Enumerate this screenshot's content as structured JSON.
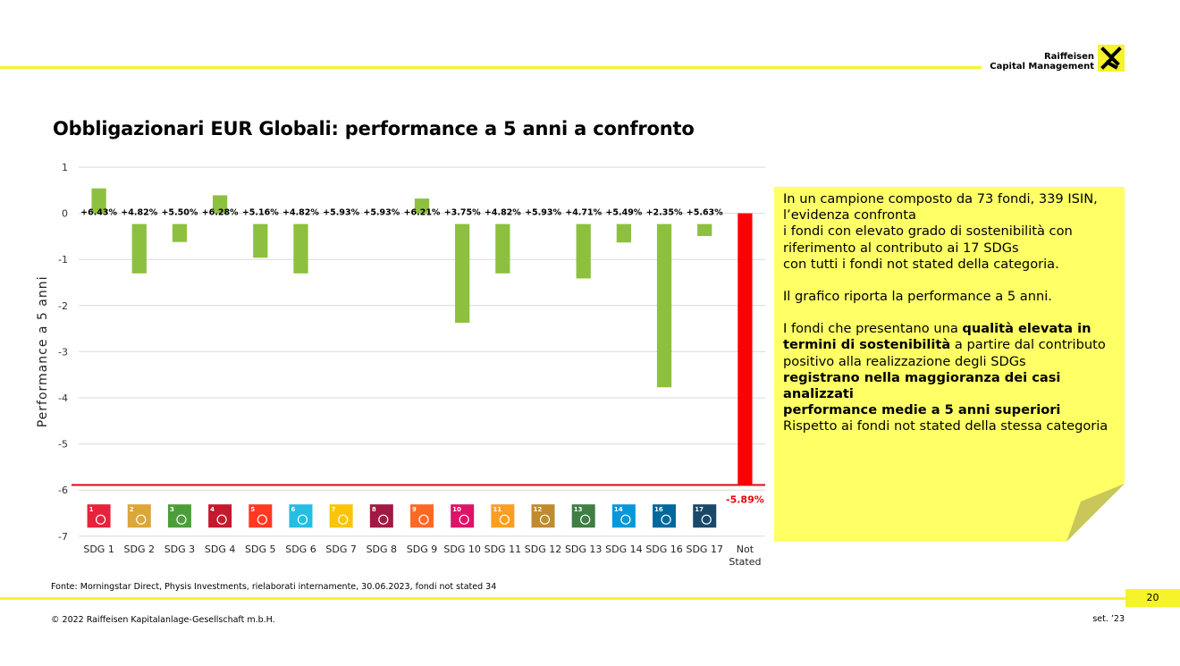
{
  "header": {
    "brand_line1": "Raiffeisen",
    "brand_line2": "Capital Management"
  },
  "title": "Obbligazionari EUR Globali: performance a 5 anni a confronto",
  "chart_data": {
    "type": "bar",
    "ylabel": "Performance a 5 anni",
    "ylim": [
      -7,
      1
    ],
    "yticks": [
      1,
      0,
      -1,
      -2,
      -3,
      -4,
      -5,
      -6,
      -7
    ],
    "grid": true,
    "categories": [
      "SDG 1",
      "SDG 2",
      "SDG 3",
      "SDG 4",
      "SDG 5",
      "SDG 6",
      "SDG 7",
      "SDG 8",
      "SDG 9",
      "SDG 10",
      "SDG 11",
      "SDG 12",
      "SDG 13",
      "SDG 14",
      "SDG 16",
      "SDG 17",
      "Not Stated"
    ],
    "category_lines": [
      [
        "SDG 1"
      ],
      [
        "SDG 2"
      ],
      [
        "SDG 3"
      ],
      [
        "SDG 4"
      ],
      [
        "SDG 5"
      ],
      [
        "SDG 6"
      ],
      [
        "SDG 7"
      ],
      [
        "SDG 8"
      ],
      [
        "SDG 9"
      ],
      [
        "SDG 10"
      ],
      [
        "SDG 11"
      ],
      [
        "SDG 12"
      ],
      [
        "SDG 13"
      ],
      [
        "SDG 14"
      ],
      [
        "SDG 16"
      ],
      [
        "SDG 17"
      ],
      [
        "Not",
        "Stated"
      ]
    ],
    "values": [
      0.54,
      -1.07,
      -0.39,
      0.39,
      -0.73,
      -1.07,
      0,
      0,
      0.32,
      -2.14,
      -1.07,
      0,
      -1.18,
      -0.4,
      -3.54,
      -0.26,
      -5.89
    ],
    "data_labels": [
      "+6.43%",
      "+4.82%",
      "+5.50%",
      "+6.28%",
      "+5.16%",
      "+4.82%",
      "+5.93%",
      "+5.93%",
      "+6.21%",
      "+3.75%",
      "+4.82%",
      "+5.93%",
      "+4.71%",
      "+5.49%",
      "+2.35%",
      "+5.63%",
      "-5.89%"
    ],
    "reference_line": -5.89,
    "colors": {
      "sdg_bar": "#8dc03f",
      "not_stated_bar": "#ff0000",
      "reference_line": "#e30613",
      "grid": "#d9d9d9"
    },
    "sdg_icons": [
      {
        "num": "1",
        "color": "#e5243b"
      },
      {
        "num": "2",
        "color": "#dda63a"
      },
      {
        "num": "3",
        "color": "#4c9f38"
      },
      {
        "num": "4",
        "color": "#c5192d"
      },
      {
        "num": "5",
        "color": "#ff3a21"
      },
      {
        "num": "6",
        "color": "#26bde2"
      },
      {
        "num": "7",
        "color": "#fcc30b"
      },
      {
        "num": "8",
        "color": "#a21942"
      },
      {
        "num": "9",
        "color": "#fd6925"
      },
      {
        "num": "10",
        "color": "#dd1367"
      },
      {
        "num": "11",
        "color": "#fd9d24"
      },
      {
        "num": "12",
        "color": "#bf8b2e"
      },
      {
        "num": "13",
        "color": "#3f7e44"
      },
      {
        "num": "14",
        "color": "#0a97d9"
      },
      {
        "num": "16",
        "color": "#00689d"
      },
      {
        "num": "17",
        "color": "#19486a"
      }
    ]
  },
  "note": {
    "p1_lines": [
      "In un campione composto da 73 fondi, 339 ISIN,",
      "l’evidenza confronta",
      "i fondi con elevato grado di sostenibilità con",
      "riferimento al contributo ai 17 SDGs",
      "con tutti i fondi not stated della categoria."
    ],
    "p2": "Il grafico riporta la performance a 5 anni.",
    "p3_a": "I fondi che presentano una ",
    "p3_b": "qualità elevata in",
    "p3_c": "termini di sostenibilità",
    "p3_d": " a partire dal contributo",
    "p3_e": "positivo alla realizzazione degli SDGs",
    "p3_f": "registrano nella maggioranza dei casi analizzati",
    "p3_g": "performance medie a 5 anni superiori",
    "p3_h": "Rispetto ai fondi not stated della stessa categoria",
    "color": "#ffff66"
  },
  "footer": {
    "source": "Fonte: Morningstar Direct, Physis Investments, rielaborati internamente, 30.06.2023, fondi not stated 34",
    "page": "20",
    "copyright": "© 2022 Raiffeisen Kapitalanlage-Gesellschaft m.b.H.",
    "date": "set. ’23"
  }
}
